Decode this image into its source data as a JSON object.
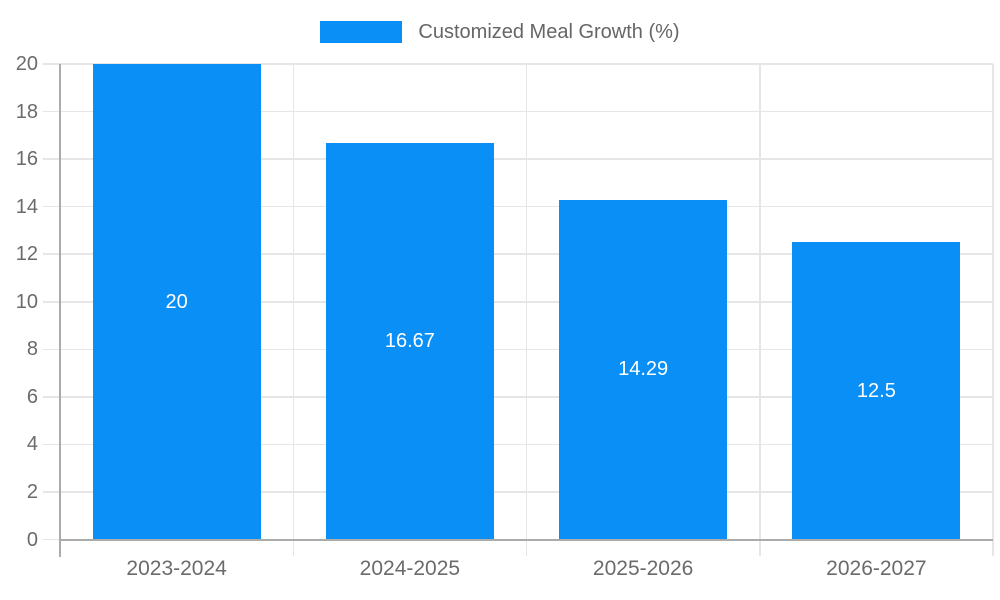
{
  "chart_data": {
    "type": "bar",
    "legend": {
      "label": "Customized Meal Growth (%)",
      "position": "top"
    },
    "categories": [
      "2023-2024",
      "2024-2025",
      "2025-2026",
      "2026-2027"
    ],
    "values": [
      20,
      16.67,
      14.29,
      12.5
    ],
    "bar_labels": [
      "20",
      "16.67",
      "14.29",
      "12.5"
    ],
    "yticks": [
      0,
      2,
      4,
      6,
      8,
      10,
      12,
      14,
      16,
      18,
      20
    ],
    "ylim": [
      0,
      20
    ],
    "grid": true,
    "colors": {
      "bar": "#0a8ff7",
      "bar_label": "#ffffff",
      "axis": "#ababab",
      "gridline": "#e6e6e6",
      "tick_label": "#6b6b6b",
      "legend_text": "#666666",
      "background": "#ffffff"
    }
  }
}
